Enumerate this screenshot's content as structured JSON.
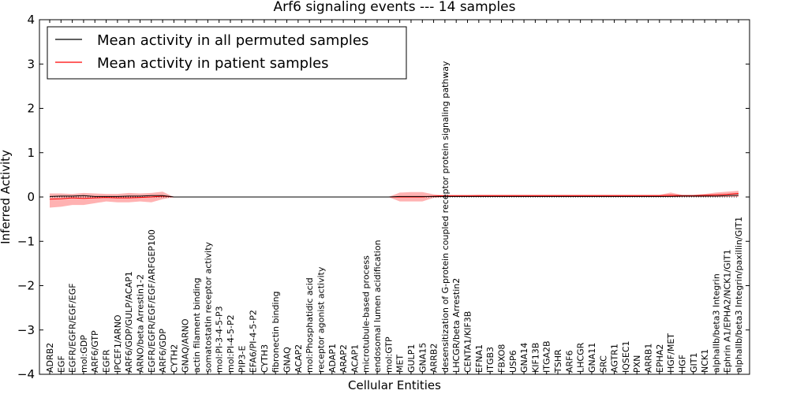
{
  "chart_data": {
    "type": "line",
    "title": "Arf6 signaling events --- 14 samples",
    "xlabel": "Cellular Entities",
    "ylabel": "Inferred Activity",
    "ylim": [
      -4,
      4
    ],
    "yticks": [
      "4",
      "3",
      "2",
      "1",
      "0",
      "−1",
      "−2",
      "−3",
      "−4"
    ],
    "legend": {
      "position": "top-left",
      "entries": [
        {
          "label": "Mean activity in all permuted samples",
          "color": "#000000"
        },
        {
          "label": "Mean activity in patient samples",
          "color": "#ff0000"
        }
      ]
    },
    "categories": [
      "ADRB2",
      "EGF",
      "EGFR/EGFR/EGF/EGF",
      "mol:GDP",
      "ARF6/GTP",
      "EGFR",
      "IPCEF1/ARNO",
      "ARF6/GDP/GULP/ACAP1",
      "ARNO/beta Arrestin1-2",
      "EGFR/EGFR/EGF/EGF/ARFGEP100",
      "ARF6/GDP",
      "CYTH2",
      "GNAQ/ARNO",
      "actin filament binding",
      "somatostatin receptor activity",
      "mol:PI-3-4-5-P3",
      "mol:PI-4-5-P2",
      "PIP3-E",
      "EFA6/PI-4-5-P2",
      "CYTH3",
      "fibronectin binding",
      "GNAQ",
      "ACAP2",
      "mol:Phosphatidic acid",
      "receptor agonist activity",
      "ADAP1",
      "ARAP2",
      "ACAP1",
      "microtubule-based process",
      "endosomal lumen acidification",
      "mol:GTP",
      "MET",
      "GULP1",
      "GNA15",
      "ARRB2",
      "desensitization of G-protein coupled receptor protein signaling pathway",
      "LHCGR/beta Arrestin2",
      "CENTA1/KIF3B",
      "EFNA1",
      "ITGB3",
      "FBXO8",
      "USP6",
      "GNA14",
      "KIF13B",
      "ITGA2B",
      "TSHR",
      "ARF6",
      "LHCGR",
      "GNA11",
      "SRC",
      "AGTR1",
      "IQSEC1",
      "PXN",
      "ARRB1",
      "EPHA2",
      "HGF/MET",
      "HGF",
      "GIT1",
      "NCK1",
      "alphaIIb/beta3 Integrin",
      "Ephrin A1/EPHA2/NCK1/GIT1",
      "alphaIIb/beta3 Integrin/paxillin/GIT1"
    ],
    "series": [
      {
        "name": "Mean activity in all permuted samples",
        "values": [
          0.01,
          0.02,
          0.02,
          0.03,
          0.01,
          0.01,
          0.01,
          0.02,
          0.02,
          0.03,
          0.03,
          0.0,
          0.0,
          0.0,
          0.0,
          0.0,
          0.0,
          0.0,
          0.0,
          0.0,
          0.0,
          0.0,
          0.0,
          0.0,
          0.0,
          0.0,
          0.0,
          0.0,
          0.0,
          0.0,
          0.0,
          0.01,
          0.01,
          0.01,
          0.01,
          0.01,
          0.01,
          0.01,
          0.01,
          0.01,
          0.01,
          0.01,
          0.01,
          0.01,
          0.01,
          0.01,
          0.01,
          0.01,
          0.01,
          0.01,
          0.01,
          0.01,
          0.01,
          0.01,
          0.01,
          0.01,
          0.02,
          0.02,
          0.02,
          0.02,
          0.03,
          0.04
        ]
      },
      {
        "name": "Mean activity in patient samples",
        "values": [
          -0.05,
          -0.04,
          -0.02,
          -0.03,
          -0.02,
          -0.01,
          -0.02,
          -0.02,
          -0.01,
          0.0,
          0.02,
          0.0,
          0.0,
          0.0,
          0.0,
          0.0,
          0.0,
          0.0,
          0.0,
          0.0,
          0.0,
          0.0,
          0.0,
          0.0,
          0.0,
          0.0,
          0.0,
          0.0,
          0.0,
          0.0,
          0.0,
          0.0,
          0.0,
          0.0,
          0.02,
          0.03,
          0.03,
          0.03,
          0.03,
          0.03,
          0.03,
          0.03,
          0.03,
          0.03,
          0.03,
          0.03,
          0.03,
          0.03,
          0.03,
          0.03,
          0.03,
          0.03,
          0.03,
          0.03,
          0.03,
          0.04,
          0.03,
          0.03,
          0.04,
          0.05,
          0.06,
          0.08
        ],
        "lower": [
          -0.24,
          -0.22,
          -0.18,
          -0.18,
          -0.14,
          -0.1,
          -0.12,
          -0.12,
          -0.1,
          -0.12,
          -0.05,
          0.0,
          0.0,
          0.0,
          0.0,
          0.0,
          0.0,
          0.0,
          0.0,
          0.0,
          0.0,
          0.0,
          0.0,
          0.0,
          0.0,
          0.0,
          0.0,
          0.0,
          0.0,
          0.0,
          0.0,
          -0.1,
          -0.1,
          -0.1,
          -0.02,
          0.0,
          0.0,
          0.0,
          0.0,
          0.0,
          0.0,
          0.0,
          0.0,
          0.0,
          0.0,
          0.0,
          0.0,
          0.0,
          0.0,
          0.0,
          0.0,
          0.0,
          0.0,
          0.0,
          0.0,
          0.0,
          0.0,
          0.0,
          0.0,
          0.0,
          0.0,
          0.0
        ],
        "upper": [
          0.08,
          0.08,
          0.07,
          0.09,
          0.08,
          0.07,
          0.07,
          0.09,
          0.08,
          0.09,
          0.12,
          0.0,
          0.0,
          0.0,
          0.0,
          0.0,
          0.0,
          0.0,
          0.0,
          0.0,
          0.0,
          0.0,
          0.0,
          0.0,
          0.0,
          0.0,
          0.0,
          0.0,
          0.0,
          0.0,
          0.0,
          0.1,
          0.11,
          0.11,
          0.06,
          0.04,
          0.04,
          0.04,
          0.05,
          0.05,
          0.05,
          0.05,
          0.05,
          0.05,
          0.05,
          0.05,
          0.05,
          0.05,
          0.05,
          0.05,
          0.05,
          0.05,
          0.05,
          0.05,
          0.05,
          0.1,
          0.05,
          0.05,
          0.07,
          0.1,
          0.12,
          0.14
        ]
      }
    ]
  }
}
